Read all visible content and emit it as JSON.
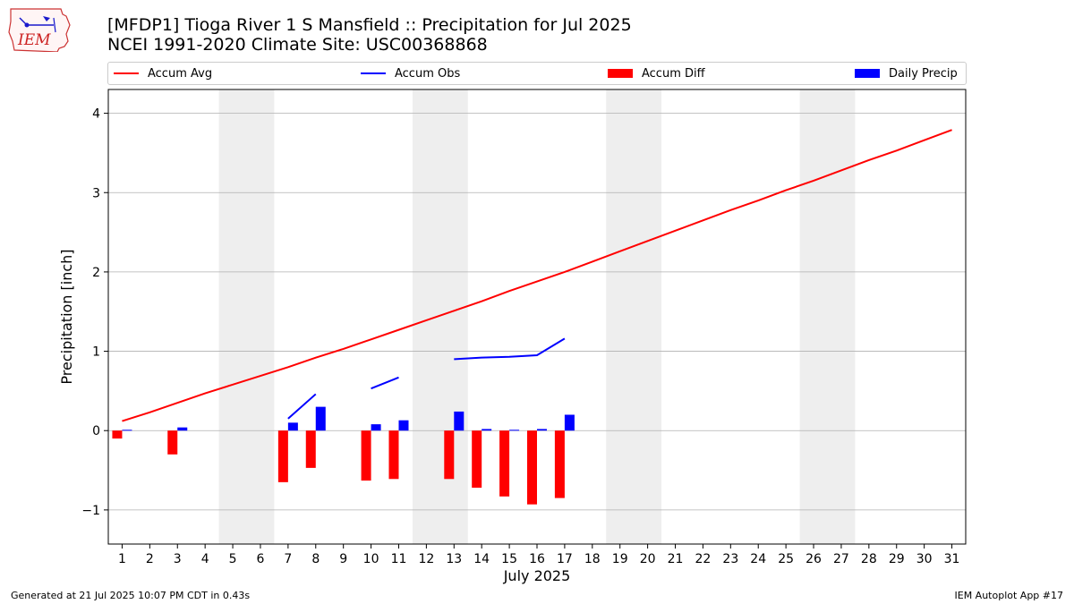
{
  "header": {
    "logo_text": "IEM",
    "title_line1": "[MFDP1] Tioga River 1 S Mansfield :: Precipitation for Jul 2025",
    "title_line2": "NCEI 1991-2020 Climate Site: USC00368868"
  },
  "legend": {
    "placement": "top",
    "items": [
      {
        "label": "Accum Avg",
        "kind": "line",
        "color": "#ff0000"
      },
      {
        "label": "Accum Obs",
        "kind": "line",
        "color": "#0000ff"
      },
      {
        "label": "Accum Diff",
        "kind": "bar",
        "color": "#ff0000"
      },
      {
        "label": "Daily Precip",
        "kind": "bar",
        "color": "#0000ff"
      }
    ]
  },
  "footer": {
    "left": "Generated at 21 Jul 2025 10:07 PM CDT in 0.43s",
    "right": "IEM Autoplot App #17"
  },
  "chart_data": {
    "type": "bar",
    "title": "[MFDP1] Tioga River 1 S Mansfield :: Precipitation for Jul 2025",
    "subtitle": "NCEI 1991-2020 Climate Site: USC00368868",
    "xlabel": "July 2025",
    "ylabel": "Precipitation [inch]",
    "xlim": [
      0.5,
      31.5
    ],
    "ylim": [
      -1.43,
      4.3
    ],
    "x": [
      1,
      2,
      3,
      4,
      5,
      6,
      7,
      8,
      9,
      10,
      11,
      12,
      13,
      14,
      15,
      16,
      17,
      18,
      19,
      20,
      21,
      22,
      23,
      24,
      25,
      26,
      27,
      28,
      29,
      30,
      31
    ],
    "yticks": [
      -1,
      0,
      1,
      2,
      3,
      4
    ],
    "ytick_labels": [
      "−1",
      "0",
      "1",
      "2",
      "3",
      "4"
    ],
    "grid": "horizontal",
    "weekend_shading": [
      [
        4.5,
        6.5
      ],
      [
        11.5,
        13.5
      ],
      [
        18.5,
        20.5
      ],
      [
        25.5,
        27.5
      ]
    ],
    "colors": {
      "avg": "#ff0000",
      "obs": "#0000ff",
      "diff": "#ff0000",
      "daily": "#0000ff",
      "shade": "#eeeeee",
      "grid": "#b0b0b0"
    },
    "series": [
      {
        "name": "Accum Avg",
        "kind": "line",
        "color": "#ff0000",
        "values": [
          0.12,
          0.23,
          0.35,
          0.47,
          0.58,
          0.69,
          0.8,
          0.92,
          1.03,
          1.15,
          1.27,
          1.39,
          1.51,
          1.63,
          1.76,
          1.88,
          2.0,
          2.13,
          2.26,
          2.39,
          2.52,
          2.65,
          2.78,
          2.9,
          3.03,
          3.15,
          3.28,
          3.41,
          3.53,
          3.66,
          3.79
        ]
      },
      {
        "name": "Accum Obs",
        "kind": "line",
        "color": "#0000ff",
        "values": [
          null,
          null,
          null,
          null,
          null,
          null,
          0.15,
          0.46,
          null,
          0.53,
          0.67,
          null,
          0.9,
          0.92,
          0.93,
          0.95,
          1.16,
          null,
          null,
          null,
          null,
          null,
          null,
          null,
          null,
          null,
          null,
          null,
          null,
          null,
          null
        ]
      },
      {
        "name": "Accum Diff",
        "kind": "bar",
        "color": "#ff0000",
        "values": [
          -0.1,
          null,
          -0.3,
          null,
          null,
          null,
          -0.65,
          -0.47,
          null,
          -0.63,
          -0.61,
          null,
          -0.61,
          -0.72,
          -0.83,
          -0.93,
          -0.85,
          null,
          null,
          null,
          null,
          null,
          null,
          null,
          null,
          null,
          null,
          null,
          null,
          null,
          null
        ]
      },
      {
        "name": "Daily Precip",
        "kind": "bar",
        "color": "#0000ff",
        "values": [
          0.01,
          0.0,
          0.04,
          0.0,
          0.0,
          0.0,
          0.1,
          0.3,
          0.0,
          0.08,
          0.13,
          0.0,
          0.24,
          0.02,
          0.01,
          0.02,
          0.2,
          null,
          null,
          null,
          null,
          null,
          null,
          null,
          null,
          null,
          null,
          null,
          null,
          null,
          null
        ]
      }
    ]
  }
}
